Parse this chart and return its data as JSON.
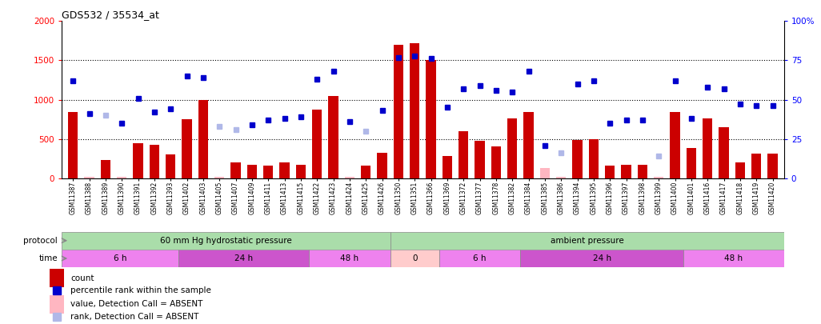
{
  "title": "GDS532 / 35534_at",
  "samples": [
    "GSM11387",
    "GSM11388",
    "GSM11389",
    "GSM11390",
    "GSM11391",
    "GSM11392",
    "GSM11393",
    "GSM11402",
    "GSM11403",
    "GSM11405",
    "GSM11407",
    "GSM11409",
    "GSM11411",
    "GSM11413",
    "GSM11415",
    "GSM11422",
    "GSM11423",
    "GSM11424",
    "GSM11425",
    "GSM11426",
    "GSM11350",
    "GSM11351",
    "GSM11366",
    "GSM11369",
    "GSM11372",
    "GSM11377",
    "GSM11378",
    "GSM11382",
    "GSM11384",
    "GSM11385",
    "GSM11386",
    "GSM11394",
    "GSM11395",
    "GSM11396",
    "GSM11397",
    "GSM11398",
    "GSM11399",
    "GSM11400",
    "GSM11401",
    "GSM11416",
    "GSM11417",
    "GSM11418",
    "GSM11419",
    "GSM11420"
  ],
  "count_values": [
    840,
    20,
    230,
    15,
    450,
    430,
    300,
    750,
    1000,
    15,
    200,
    170,
    160,
    200,
    175,
    870,
    1050,
    15,
    160,
    320,
    1700,
    1720,
    1500,
    280,
    600,
    480,
    400,
    760,
    840,
    130,
    15,
    490,
    500,
    160,
    170,
    170,
    15,
    840,
    380,
    760,
    650,
    200,
    310,
    315
  ],
  "count_absent": [
    false,
    true,
    false,
    true,
    false,
    false,
    false,
    false,
    false,
    true,
    false,
    false,
    false,
    false,
    false,
    false,
    false,
    true,
    false,
    false,
    false,
    false,
    false,
    false,
    false,
    false,
    false,
    false,
    false,
    true,
    true,
    false,
    false,
    false,
    false,
    false,
    true,
    false,
    false,
    false,
    false,
    false,
    false,
    false
  ],
  "rank_values": [
    62,
    41,
    40,
    35,
    51,
    42,
    44,
    65,
    64,
    33,
    31,
    34,
    37,
    38,
    39,
    63,
    68,
    36,
    30,
    43,
    77,
    78,
    76,
    45,
    57,
    59,
    56,
    55,
    68,
    21,
    16,
    60,
    62,
    35,
    37,
    37,
    14,
    62,
    38,
    58,
    57,
    47,
    46,
    46
  ],
  "rank_absent": [
    false,
    false,
    true,
    false,
    false,
    false,
    false,
    false,
    false,
    true,
    true,
    false,
    false,
    false,
    false,
    false,
    false,
    false,
    true,
    false,
    false,
    false,
    false,
    false,
    false,
    false,
    false,
    false,
    false,
    false,
    true,
    false,
    false,
    false,
    false,
    false,
    true,
    false,
    false,
    false,
    false,
    false,
    false,
    false
  ],
  "protocol_groups": [
    {
      "label": "60 mm Hg hydrostatic pressure",
      "start": 0,
      "end": 20,
      "color": "#aaddaa"
    },
    {
      "label": "ambient pressure",
      "start": 20,
      "end": 44,
      "color": "#aaddaa"
    }
  ],
  "time_groups": [
    {
      "label": "6 h",
      "start": 0,
      "end": 7,
      "color": "#ee82ee"
    },
    {
      "label": "24 h",
      "start": 7,
      "end": 15,
      "color": "#cc55cc"
    },
    {
      "label": "48 h",
      "start": 15,
      "end": 20,
      "color": "#ee82ee"
    },
    {
      "label": "0",
      "start": 20,
      "end": 23,
      "color": "#ffcccc"
    },
    {
      "label": "6 h",
      "start": 23,
      "end": 28,
      "color": "#ee82ee"
    },
    {
      "label": "24 h",
      "start": 28,
      "end": 38,
      "color": "#cc55cc"
    },
    {
      "label": "48 h",
      "start": 38,
      "end": 44,
      "color": "#ee82ee"
    }
  ],
  "bar_color_present": "#cc0000",
  "bar_color_absent": "#ffb6c1",
  "rank_color_present": "#0000cc",
  "rank_color_absent": "#b0b8e8",
  "ylim_left": [
    0,
    2000
  ],
  "ylim_right": [
    0,
    100
  ],
  "yticks_left": [
    0,
    500,
    1000,
    1500,
    2000
  ],
  "yticks_right": [
    0,
    25,
    50,
    75,
    100
  ],
  "hgrid_values": [
    500,
    1000,
    1500
  ],
  "n_split": 20
}
